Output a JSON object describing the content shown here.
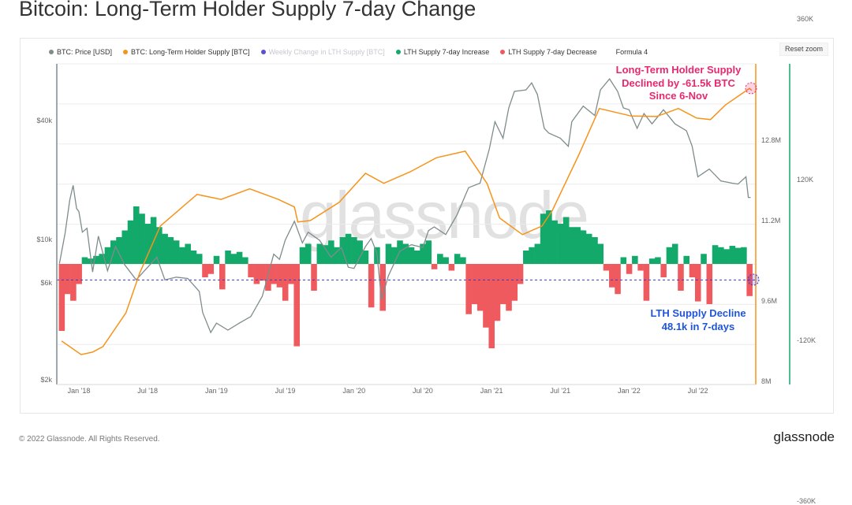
{
  "title": "Bitcoin: Long-Term Holder Supply 7-day Change",
  "reset_zoom_label": "Reset zoom",
  "footer": "© 2022 Glassnode. All Rights Reserved.",
  "logo_text": "glassnode",
  "watermark_text": "glassnode",
  "legend": [
    {
      "label": "BTC: Price [USD]",
      "color": "#7f8c8d",
      "muted": false
    },
    {
      "label": "BTC: Long-Term Holder Supply [BTC]",
      "color": "#f7931a",
      "muted": false
    },
    {
      "label": "Weekly Change in LTH Supply [BTC]",
      "color": "#5b4fd6",
      "muted": true
    },
    {
      "label": "LTH Supply 7-day Increase",
      "color": "#12a96b",
      "muted": false
    },
    {
      "label": "LTH Supply 7-day Decrease",
      "color": "#ef5a5f",
      "muted": false
    },
    {
      "label": "Formula 4",
      "color": null,
      "muted": false
    }
  ],
  "annotations": {
    "supply": [
      "Long-Term Holder Supply",
      "Declined by -61.5k BTC",
      "Since 6-Nov"
    ],
    "decline": [
      "LTH Supply Decline",
      "48.1k in 7-days"
    ]
  },
  "chart_data": {
    "type": "line",
    "title": "Bitcoin: Long-Term Holder Supply 7-day Change",
    "x_unit": "months since Jan 2018",
    "xlim": [
      -1.7,
      58.7
    ],
    "x_ticks": [
      {
        "t": 0,
        "label": "Jan '18"
      },
      {
        "t": 6,
        "label": "Jul '18"
      },
      {
        "t": 12,
        "label": "Jan '19"
      },
      {
        "t": 18,
        "label": "Jul '19"
      },
      {
        "t": 24,
        "label": "Jan '20"
      },
      {
        "t": 30,
        "label": "Jul '20"
      },
      {
        "t": 36,
        "label": "Jan '21"
      },
      {
        "t": 42,
        "label": "Jul '21"
      },
      {
        "t": 48,
        "label": "Jan '22"
      },
      {
        "t": 54,
        "label": "Jul '22"
      }
    ],
    "y_price": {
      "scale": "log",
      "ylim": [
        2000,
        80000
      ],
      "ticks": [
        {
          "v": 2000,
          "label": "$2k"
        },
        {
          "v": 6000,
          "label": "$6k"
        },
        {
          "v": 10000,
          "label": "$10k"
        },
        {
          "v": 40000,
          "label": "$40k"
        }
      ]
    },
    "y_supply": {
      "unit": "M BTC",
      "ylim": [
        8,
        14.4
      ],
      "ticks": [
        {
          "v": 8,
          "label": "8M"
        },
        {
          "v": 9.6,
          "label": "9.6M"
        },
        {
          "v": 11.2,
          "label": "11.2M"
        },
        {
          "v": 12.8,
          "label": "12.8M"
        }
      ]
    },
    "y_change": {
      "unit": "K BTC",
      "ylim": [
        -360,
        540
      ],
      "ticks": [
        {
          "v": -360,
          "label": "-360K"
        },
        {
          "v": -120,
          "label": "-120K"
        },
        {
          "v": 120,
          "label": "120K"
        },
        {
          "v": 360,
          "label": "360K"
        }
      ]
    },
    "series": [
      {
        "name": "BTC: Price [USD]",
        "color": "#7f8c8d",
        "points": [
          [
            -1.7,
            7600
          ],
          [
            -1.2,
            10900
          ],
          [
            -0.8,
            16000
          ],
          [
            -0.5,
            19000
          ],
          [
            -0.2,
            14500
          ],
          [
            0,
            14000
          ],
          [
            0.3,
            11000
          ],
          [
            0.7,
            11500
          ],
          [
            1.2,
            6900
          ],
          [
            1.7,
            10500
          ],
          [
            2.5,
            7000
          ],
          [
            3.2,
            9300
          ],
          [
            4,
            7500
          ],
          [
            5,
            6300
          ],
          [
            6,
            7300
          ],
          [
            6.8,
            8200
          ],
          [
            7.5,
            6300
          ],
          [
            8.5,
            6500
          ],
          [
            9.5,
            6400
          ],
          [
            10.5,
            5500
          ],
          [
            10.8,
            4300
          ],
          [
            11.5,
            3400
          ],
          [
            12,
            3800
          ],
          [
            13,
            3500
          ],
          [
            14,
            3800
          ],
          [
            15,
            4100
          ],
          [
            16,
            5200
          ],
          [
            17,
            8500
          ],
          [
            17.5,
            8000
          ],
          [
            18,
            10000
          ],
          [
            18.8,
            12500
          ],
          [
            19.5,
            9700
          ],
          [
            20,
            11000
          ],
          [
            21,
            10000
          ],
          [
            22,
            8200
          ],
          [
            22.9,
            9200
          ],
          [
            23.5,
            7300
          ],
          [
            24,
            7200
          ],
          [
            25,
            9300
          ],
          [
            25.5,
            10200
          ],
          [
            26,
            8600
          ],
          [
            26.4,
            5000
          ],
          [
            27,
            6600
          ],
          [
            28,
            8800
          ],
          [
            29,
            9500
          ],
          [
            30,
            9200
          ],
          [
            30.5,
            11200
          ],
          [
            31,
            11700
          ],
          [
            32,
            10700
          ],
          [
            33,
            13500
          ],
          [
            34,
            18500
          ],
          [
            35,
            19500
          ],
          [
            35.8,
            29000
          ],
          [
            36.3,
            40000
          ],
          [
            37,
            33000
          ],
          [
            37.5,
            47000
          ],
          [
            38,
            57000
          ],
          [
            39,
            58000
          ],
          [
            39.5,
            63000
          ],
          [
            40,
            55000
          ],
          [
            40.6,
            37000
          ],
          [
            41,
            35000
          ],
          [
            42,
            33000
          ],
          [
            42.7,
            30000
          ],
          [
            43,
            40000
          ],
          [
            44,
            48000
          ],
          [
            45,
            43000
          ],
          [
            45.5,
            58000
          ],
          [
            46.3,
            66000
          ],
          [
            47,
            57000
          ],
          [
            47.5,
            47000
          ],
          [
            48,
            46000
          ],
          [
            48.7,
            37000
          ],
          [
            49.3,
            44000
          ],
          [
            50,
            39000
          ],
          [
            51,
            46000
          ],
          [
            52,
            39000
          ],
          [
            53,
            36000
          ],
          [
            53.5,
            30000
          ],
          [
            54,
            21000
          ],
          [
            55,
            23000
          ],
          [
            56,
            20000
          ],
          [
            57,
            19500
          ],
          [
            57.5,
            19300
          ],
          [
            58,
            20500
          ],
          [
            58.2,
            21000
          ],
          [
            58.4,
            16500
          ],
          [
            58.6,
            16500
          ]
        ]
      },
      {
        "name": "BTC: Long-Term Holder Supply [BTC]",
        "color": "#f7931a",
        "points": [
          [
            -1.5,
            8.88
          ],
          [
            0.2,
            8.61
          ],
          [
            1.2,
            8.66
          ],
          [
            2.1,
            8.77
          ],
          [
            4.1,
            9.44
          ],
          [
            5.3,
            10.23
          ],
          [
            7.1,
            11.17
          ],
          [
            10.3,
            11.8
          ],
          [
            12.4,
            11.7
          ],
          [
            14.9,
            11.91
          ],
          [
            17.4,
            11.7
          ],
          [
            18.8,
            11.55
          ],
          [
            19.1,
            11.25
          ],
          [
            20.2,
            11.28
          ],
          [
            22.7,
            11.64
          ],
          [
            25,
            12.22
          ],
          [
            26.6,
            12.02
          ],
          [
            28.9,
            12.25
          ],
          [
            31.2,
            12.53
          ],
          [
            33.7,
            12.66
          ],
          [
            35.6,
            12.02
          ],
          [
            36.7,
            11.33
          ],
          [
            38.7,
            11.0
          ],
          [
            40.4,
            11.17
          ],
          [
            41.3,
            11.48
          ],
          [
            43.6,
            12.58
          ],
          [
            45.4,
            13.51
          ],
          [
            48.2,
            13.36
          ],
          [
            50.4,
            13.35
          ],
          [
            52.3,
            13.51
          ],
          [
            53.9,
            13.32
          ],
          [
            55.1,
            13.29
          ],
          [
            56.4,
            13.58
          ],
          [
            58.5,
            13.91
          ],
          [
            58.7,
            13.87
          ]
        ]
      }
    ],
    "weekly_change": {
      "name": "Weekly Change in LTH Supply [BTC]",
      "unit": "K BTC",
      "start_month": -1.5,
      "step_months": 0.5,
      "increase_color": "#12a96b",
      "decrease_color": "#ef5a5f",
      "values": [
        -100,
        -45,
        -55,
        -30,
        10,
        8,
        12,
        15,
        25,
        35,
        40,
        50,
        65,
        86,
        75,
        60,
        70,
        55,
        45,
        40,
        35,
        25,
        30,
        20,
        15,
        -20,
        -15,
        12,
        -38,
        20,
        15,
        18,
        10,
        -20,
        -30,
        -25,
        -40,
        -30,
        -35,
        -55,
        -30,
        -123,
        25,
        30,
        -40,
        30,
        28,
        35,
        25,
        40,
        45,
        40,
        35,
        20,
        -65,
        25,
        -70,
        30,
        25,
        35,
        30,
        25,
        20,
        30,
        35,
        -8,
        15,
        10,
        -10,
        15,
        10,
        -75,
        -60,
        -70,
        -95,
        -126,
        -85,
        -60,
        -70,
        -55,
        -30,
        20,
        25,
        30,
        75,
        80,
        65,
        60,
        70,
        55,
        55,
        50,
        45,
        40,
        30,
        -10,
        -35,
        -45,
        10,
        -15,
        12,
        -10,
        -55,
        8,
        10,
        -20,
        25,
        30,
        -40,
        12,
        -20,
        -56,
        15,
        -60,
        28,
        25,
        22,
        27,
        24,
        25,
        -48
      ]
    },
    "reference_line_value": -24,
    "grid": true,
    "legend_position": "top"
  }
}
